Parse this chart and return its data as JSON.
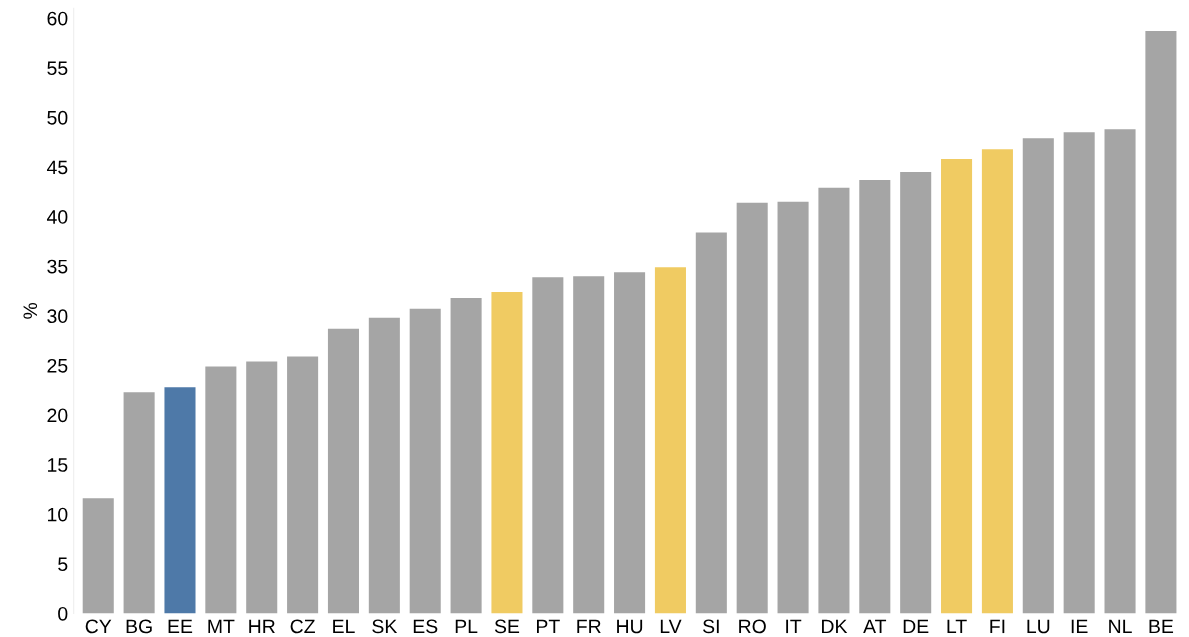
{
  "chart_data": {
    "type": "bar",
    "ylabel": "%",
    "categories": [
      "CY",
      "BG",
      "EE",
      "MT",
      "HR",
      "CZ",
      "EL",
      "SK",
      "ES",
      "PL",
      "SE",
      "PT",
      "FR",
      "HU",
      "LV",
      "SI",
      "RO",
      "IT",
      "DK",
      "AT",
      "DE",
      "LT",
      "FI",
      "LU",
      "IE",
      "NL",
      "BE"
    ],
    "values": [
      11.6,
      22.3,
      22.8,
      24.9,
      25.4,
      25.9,
      28.7,
      29.8,
      30.7,
      31.8,
      32.4,
      33.9,
      34.0,
      34.4,
      34.9,
      38.4,
      41.4,
      41.5,
      42.9,
      43.7,
      44.5,
      45.8,
      46.8,
      47.9,
      48.5,
      48.8,
      58.7
    ],
    "colors": [
      "#a5a5a5",
      "#a5a5a5",
      "#4e79a8",
      "#a5a5a5",
      "#a5a5a5",
      "#a5a5a5",
      "#a5a5a5",
      "#a5a5a5",
      "#a5a5a5",
      "#a5a5a5",
      "#f0cb62",
      "#a5a5a5",
      "#a5a5a5",
      "#a5a5a5",
      "#f0cb62",
      "#a5a5a5",
      "#a5a5a5",
      "#a5a5a5",
      "#a5a5a5",
      "#a5a5a5",
      "#a5a5a5",
      "#f0cb62",
      "#f0cb62",
      "#a5a5a5",
      "#a5a5a5",
      "#a5a5a5",
      "#a5a5a5"
    ],
    "ylim": [
      0,
      61
    ],
    "yticks": [
      0,
      5,
      10,
      15,
      20,
      25,
      30,
      35,
      40,
      45,
      50,
      55,
      60
    ],
    "grid": false,
    "legend": false
  }
}
